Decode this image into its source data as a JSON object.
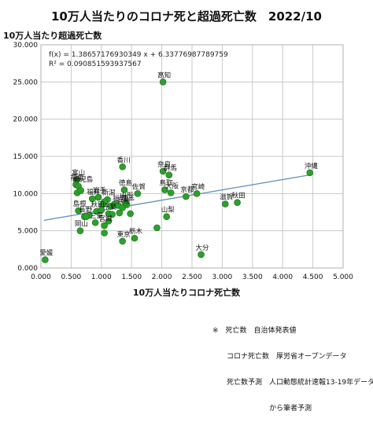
{
  "chart_data": {
    "type": "scatter",
    "title": "10万人当たりのコロナ死と超過死亡数　2022/10",
    "ylabel": "10万人当たり超過死亡数",
    "xlabel": "10万人当たりコロナ死亡数",
    "xlim": [
      0,
      5
    ],
    "ylim": [
      0,
      30
    ],
    "xticks": [
      "0.000",
      "0.500",
      "1.000",
      "1.500",
      "2.000",
      "2.500",
      "3.000",
      "3.500",
      "4.000",
      "4.500",
      "5.000"
    ],
    "yticks": [
      "0.000",
      "5.000",
      "10.000",
      "15.000",
      "20.000",
      "25.000",
      "30.000"
    ],
    "grid": true,
    "point_color": "#2ca02c",
    "trend_color": "#5b8db8",
    "trendline": {
      "equation": "f(x) = 1.38657176930349 x + 6.33776987789759",
      "r2": "R² = 0.090851593937567",
      "slope": 1.38657176930349,
      "intercept": 6.33776987789759,
      "x_range": [
        0.05,
        4.45
      ]
    },
    "points": [
      {
        "x": 0.07,
        "y": 1.1,
        "label": "愛媛"
      },
      {
        "x": 0.6,
        "y": 11.9,
        "label": "富山"
      },
      {
        "x": 0.58,
        "y": 11.2,
        "label": "福島"
      },
      {
        "x": 0.62,
        "y": 11.0,
        "label": "鹿児島"
      },
      {
        "x": 0.6,
        "y": 10.1,
        "label": ""
      },
      {
        "x": 0.66,
        "y": 10.4,
        "label": ""
      },
      {
        "x": 0.85,
        "y": 9.3,
        "label": "福井"
      },
      {
        "x": 0.95,
        "y": 9.5,
        "label": "岩手"
      },
      {
        "x": 1.1,
        "y": 9.2,
        "label": "新潟"
      },
      {
        "x": 1.05,
        "y": 8.9,
        "label": ""
      },
      {
        "x": 1.02,
        "y": 8.5,
        "label": ""
      },
      {
        "x": 1.15,
        "y": 8.3,
        "label": ""
      },
      {
        "x": 1.22,
        "y": 8.6,
        "label": ""
      },
      {
        "x": 1.28,
        "y": 8.4,
        "label": "福岡"
      },
      {
        "x": 1.35,
        "y": 8.1,
        "label": "兵庫"
      },
      {
        "x": 1.42,
        "y": 8.5,
        "label": "埼玉"
      },
      {
        "x": 0.62,
        "y": 7.7,
        "label": "島根"
      },
      {
        "x": 0.72,
        "y": 6.9,
        "label": "長野"
      },
      {
        "x": 0.8,
        "y": 7.1,
        "label": ""
      },
      {
        "x": 0.92,
        "y": 7.6,
        "label": "秋田"
      },
      {
        "x": 1.0,
        "y": 7.8,
        "label": ""
      },
      {
        "x": 1.12,
        "y": 7.3,
        "label": "千葉"
      },
      {
        "x": 1.18,
        "y": 7.2,
        "label": ""
      },
      {
        "x": 1.3,
        "y": 7.4,
        "label": ""
      },
      {
        "x": 1.48,
        "y": 7.3,
        "label": ""
      },
      {
        "x": 0.75,
        "y": 6.9,
        "label": ""
      },
      {
        "x": 0.65,
        "y": 5.0,
        "label": "岡山"
      },
      {
        "x": 0.9,
        "y": 6.1,
        "label": "三重"
      },
      {
        "x": 1.05,
        "y": 5.7,
        "label": "宮城"
      },
      {
        "x": 1.12,
        "y": 6.3,
        "label": ""
      },
      {
        "x": 1.05,
        "y": 4.7,
        "label": ""
      },
      {
        "x": 1.35,
        "y": 3.6,
        "label": "東京"
      },
      {
        "x": 1.55,
        "y": 4.0,
        "label": "栃木"
      },
      {
        "x": 1.35,
        "y": 13.6,
        "label": "香川"
      },
      {
        "x": 1.38,
        "y": 10.5,
        "label": "徳島"
      },
      {
        "x": 1.6,
        "y": 10.0,
        "label": "佐賀"
      },
      {
        "x": 1.4,
        "y": 8.8,
        "label": "山形"
      },
      {
        "x": 2.02,
        "y": 25.0,
        "label": "高知"
      },
      {
        "x": 2.02,
        "y": 13.0,
        "label": "奈良"
      },
      {
        "x": 2.12,
        "y": 12.5,
        "label": "群馬"
      },
      {
        "x": 2.05,
        "y": 10.5,
        "label": "鳥取"
      },
      {
        "x": 2.15,
        "y": 10.1,
        "label": "大阪"
      },
      {
        "x": 2.4,
        "y": 9.6,
        "label": "京都"
      },
      {
        "x": 2.58,
        "y": 10.0,
        "label": "宮崎"
      },
      {
        "x": 2.08,
        "y": 6.9,
        "label": "山梨"
      },
      {
        "x": 1.92,
        "y": 5.4,
        "label": ""
      },
      {
        "x": 2.65,
        "y": 1.8,
        "label": "大分"
      },
      {
        "x": 3.05,
        "y": 8.6,
        "label": "滋賀"
      },
      {
        "x": 3.25,
        "y": 8.8,
        "label": "秋田"
      },
      {
        "x": 4.45,
        "y": 12.8,
        "label": "沖縄"
      }
    ]
  },
  "notes": [
    "※　死亡数　自治体発表値",
    "　　コロナ死亡数　厚労省オープンデータ",
    "　　死亡数予測　人口動態統計速報13-19年データ",
    "　　　　　　　　から筆者予測"
  ]
}
